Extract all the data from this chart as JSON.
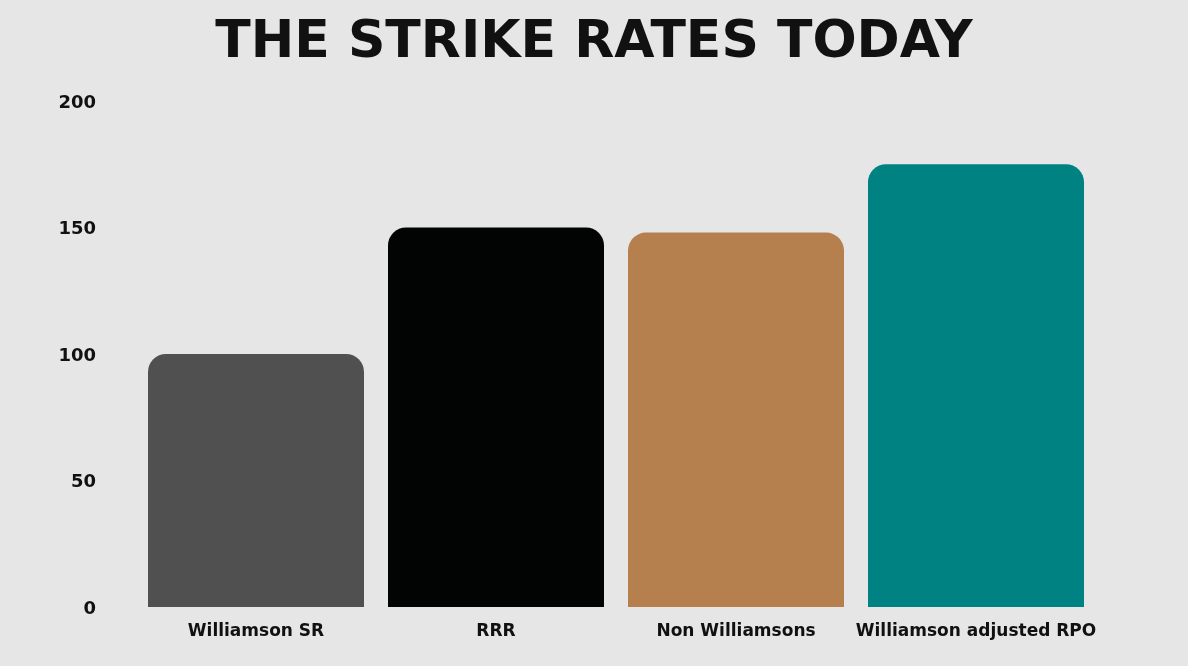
{
  "chart_data": {
    "type": "bar",
    "title": "THE STRIKE RATES TODAY",
    "categories": [
      "Williamson SR",
      "RRR",
      "Non Williamsons",
      "Williamson adjusted RPO"
    ],
    "values": [
      100,
      150,
      148,
      175
    ],
    "colors": [
      "#505050",
      "#020404",
      "#b57f4e",
      "#008282"
    ],
    "ylim": [
      0,
      200
    ],
    "yticks": [
      0,
      50,
      100,
      150,
      200
    ]
  }
}
